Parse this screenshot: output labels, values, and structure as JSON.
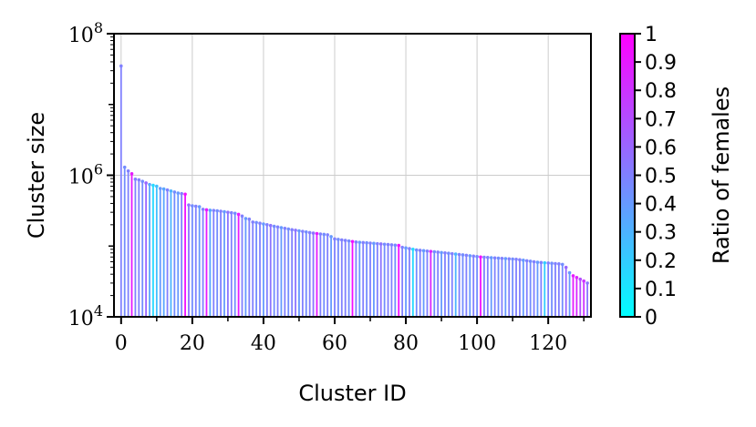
{
  "chart_data": {
    "type": "bar",
    "xlabel": "Cluster ID",
    "ylabel": "Cluster size",
    "yscale": "log",
    "ylim": [
      10000,
      100000000
    ],
    "xlim": [
      -2,
      132
    ],
    "x_ticks": [
      0,
      20,
      40,
      60,
      80,
      100,
      120
    ],
    "x_minor_ticks": [
      10,
      30,
      50,
      70,
      90,
      110,
      130
    ],
    "y_ticks": [
      {
        "value": 10000,
        "base": "10",
        "exp": "4"
      },
      {
        "value": 1000000,
        "base": "10",
        "exp": "6"
      },
      {
        "value": 100000000,
        "base": "10",
        "exp": "8"
      }
    ],
    "grid": true,
    "colorbar": {
      "label": "Ratio of females",
      "ticks": [
        "0",
        "0.1",
        "0.2",
        "0.3",
        "0.4",
        "0.5",
        "0.6",
        "0.7",
        "0.8",
        "0.9",
        "1"
      ],
      "range": [
        0,
        1
      ],
      "colormap": [
        "#00ffff",
        "#ff00ff"
      ]
    },
    "x": [
      0,
      1,
      2,
      3,
      4,
      5,
      6,
      7,
      8,
      9,
      10,
      11,
      12,
      13,
      14,
      15,
      16,
      17,
      18,
      19,
      20,
      21,
      22,
      23,
      24,
      25,
      26,
      27,
      28,
      29,
      30,
      31,
      32,
      33,
      34,
      35,
      36,
      37,
      38,
      39,
      40,
      41,
      42,
      43,
      44,
      45,
      46,
      47,
      48,
      49,
      50,
      51,
      52,
      53,
      54,
      55,
      56,
      57,
      58,
      59,
      60,
      61,
      62,
      63,
      64,
      65,
      66,
      67,
      68,
      69,
      70,
      71,
      72,
      73,
      74,
      75,
      76,
      77,
      78,
      79,
      80,
      81,
      82,
      83,
      84,
      85,
      86,
      87,
      88,
      89,
      90,
      91,
      92,
      93,
      94,
      95,
      96,
      97,
      98,
      99,
      100,
      101,
      102,
      103,
      104,
      105,
      106,
      107,
      108,
      109,
      110,
      111,
      112,
      113,
      114,
      115,
      116,
      117,
      118,
      119,
      120,
      121,
      122,
      123,
      124,
      125,
      126,
      127,
      128,
      129,
      130,
      131
    ],
    "values": [
      35000000,
      1300000,
      1150000,
      1050000,
      880000,
      860000,
      820000,
      780000,
      740000,
      720000,
      700000,
      650000,
      640000,
      620000,
      600000,
      580000,
      560000,
      550000,
      540000,
      380000,
      370000,
      365000,
      360000,
      330000,
      325000,
      320000,
      318000,
      315000,
      310000,
      305000,
      300000,
      295000,
      290000,
      280000,
      265000,
      245000,
      240000,
      218000,
      215000,
      210000,
      205000,
      200000,
      195000,
      190000,
      186000,
      182000,
      178000,
      174000,
      170000,
      167000,
      164000,
      161000,
      158000,
      155000,
      152000,
      150000,
      148000,
      146000,
      144000,
      136000,
      126000,
      124000,
      122000,
      120000,
      118000,
      116000,
      114000,
      113000,
      112000,
      111000,
      110000,
      109000,
      108000,
      107000,
      106000,
      105000,
      104000,
      103000,
      102000,
      96000,
      94000,
      92000,
      90000,
      88000,
      87000,
      86000,
      85000,
      84000,
      83000,
      82000,
      81000,
      80000,
      79000,
      78000,
      77000,
      76000,
      75000,
      74000,
      73000,
      72000,
      71000,
      70000,
      69500,
      69000,
      68500,
      68000,
      67500,
      67000,
      66500,
      66000,
      65500,
      65000,
      64000,
      63000,
      62000,
      61000,
      60000,
      59000,
      58500,
      58000,
      57500,
      57000,
      56500,
      56000,
      55000,
      50000,
      42000,
      38000,
      36000,
      34000,
      32000,
      30000
    ],
    "ratios": [
      0.5,
      0.45,
      0.5,
      0.9,
      0.5,
      0.5,
      0.45,
      0.6,
      0.35,
      0.15,
      0.25,
      0.4,
      0.35,
      0.5,
      0.3,
      0.45,
      0.4,
      0.5,
      0.95,
      0.55,
      0.45,
      0.5,
      0.4,
      0.5,
      0.9,
      0.35,
      0.5,
      0.45,
      0.5,
      0.4,
      0.55,
      0.5,
      0.45,
      0.9,
      0.5,
      0.4,
      0.5,
      0.5,
      0.45,
      0.5,
      0.4,
      0.5,
      0.55,
      0.45,
      0.5,
      0.4,
      0.5,
      0.45,
      0.5,
      0.55,
      0.4,
      0.5,
      0.45,
      0.5,
      0.55,
      0.9,
      0.5,
      0.45,
      0.5,
      0.4,
      0.5,
      0.45,
      0.5,
      0.5,
      0.45,
      0.95,
      0.5,
      0.4,
      0.5,
      0.45,
      0.5,
      0.4,
      0.5,
      0.55,
      0.45,
      0.5,
      0.5,
      0.45,
      0.95,
      0.5,
      0.4,
      0.5,
      0.15,
      0.45,
      0.5,
      0.4,
      0.5,
      0.85,
      0.45,
      0.5,
      0.4,
      0.5,
      0.45,
      0.5,
      0.3,
      0.5,
      0.45,
      0.5,
      0.4,
      0.5,
      0.45,
      0.95,
      0.5,
      0.5,
      0.4,
      0.5,
      0.45,
      0.5,
      0.4,
      0.5,
      0.45,
      0.5,
      0.5,
      0.4,
      0.5,
      0.45,
      0.5,
      0.4,
      0.5,
      0.2,
      0.5,
      0.45,
      0.5,
      0.5,
      0.45,
      0.6,
      0.4,
      0.9,
      0.85,
      0.7,
      0.8,
      0.55
    ]
  }
}
